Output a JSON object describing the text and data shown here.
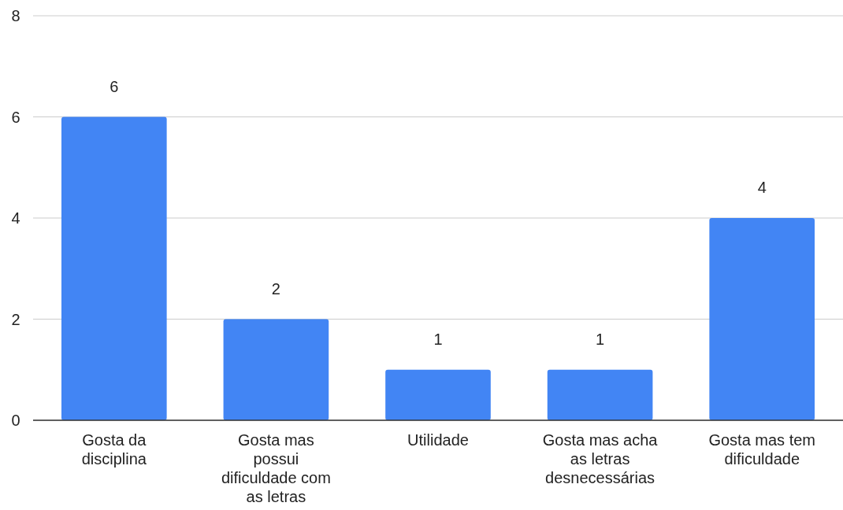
{
  "chart_data": {
    "type": "bar",
    "categories": [
      "Gosta da disciplina",
      "Gosta mas possui dificuldade com as letras",
      "Utilidade",
      "Gosta mas acha as letras desnecessárias",
      "Gosta mas tem dificuldade"
    ],
    "values": [
      6,
      2,
      1,
      1,
      4
    ],
    "color": "#4285f4",
    "ylim": [
      0,
      8
    ],
    "yticks": [
      0,
      2,
      4,
      6,
      8
    ],
    "grid": "y",
    "data_labels": true
  }
}
